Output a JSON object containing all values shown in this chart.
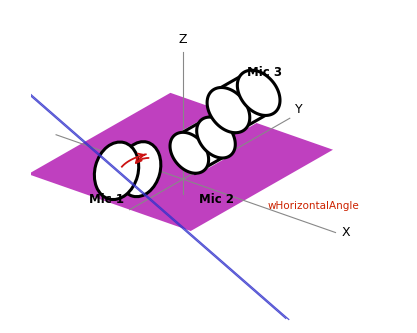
{
  "background_color": "#ffffff",
  "plane_color": "#AA00AA",
  "plane_alpha": 0.75,
  "axis_color": "#888888",
  "blue_line_color": "#3333CC",
  "red_arrow_color": "#CC1111",
  "text_color": "#000000",
  "red_text_color": "#CC2200",
  "fig_width": 4.17,
  "fig_height": 3.33,
  "dpi": 100,
  "labels": {
    "X": "X",
    "Y": "Y",
    "Z": "Z",
    "mic1": "Mic 1",
    "mic2": "Mic 2",
    "mic3": "Mic 3",
    "angle": "wHorizontalAngle"
  }
}
